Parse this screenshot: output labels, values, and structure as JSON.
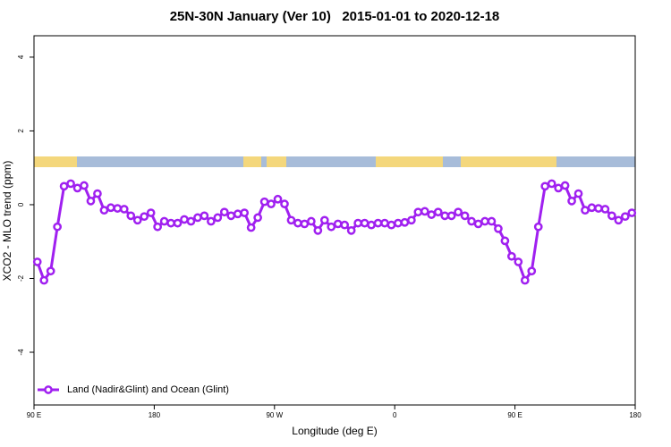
{
  "chart_data": {
    "type": "line",
    "title": "25N-30N January (Ver 10)   2015-01-01 to 2020-12-18",
    "x_label": "Longitude (deg E)",
    "y_label": "XCO2 - MLO trend (ppm)",
    "x": [
      92.5,
      97.5,
      102.5,
      107.5,
      112.5,
      117.5,
      122.5,
      127.5,
      132.5,
      137.5,
      142.5,
      147.5,
      152.5,
      157.5,
      162.5,
      167.5,
      172.5,
      177.5,
      182.5,
      187.5,
      192.5,
      197.5,
      202.5,
      207.5,
      212.5,
      217.5,
      222.5,
      227.5,
      232.5,
      237.5,
      242.5,
      247.5,
      252.5,
      257.5,
      262.5,
      267.5,
      272.5,
      277.5,
      282.5,
      287.5,
      292.5,
      297.5,
      302.5,
      307.5,
      312.5,
      317.5,
      322.5,
      327.5,
      332.5,
      337.5,
      342.5,
      347.5,
      352.5,
      357.5,
      362.5,
      367.5,
      372.5,
      377.5,
      382.5,
      387.5,
      392.5,
      397.5,
      402.5,
      407.5,
      412.5,
      417.5,
      422.5,
      427.5,
      432.5,
      437.5,
      442.5,
      447.5,
      452.5,
      457.5,
      462.5,
      467.5,
      472.5,
      477.5,
      482.5,
      487.5,
      492.5,
      497.5,
      502.5,
      507.5,
      512.5,
      517.5,
      522.5,
      527.5,
      532.5,
      537.5
    ],
    "series": [
      {
        "name": "Land (Nadir&Glint) and Ocean (Glint)",
        "color": "#a020f0",
        "values": [
          -1.55,
          -2.05,
          -1.8,
          -0.6,
          0.5,
          0.57,
          0.45,
          0.52,
          0.1,
          0.3,
          -0.15,
          -0.08,
          -0.1,
          -0.12,
          -0.3,
          -0.42,
          -0.32,
          -0.22,
          -0.6,
          -0.45,
          -0.5,
          -0.5,
          -0.4,
          -0.45,
          -0.35,
          -0.3,
          -0.45,
          -0.35,
          -0.2,
          -0.3,
          -0.25,
          -0.22,
          -0.62,
          -0.35,
          0.08,
          0.02,
          0.15,
          0.02,
          -0.42,
          -0.5,
          -0.52,
          -0.45,
          -0.7,
          -0.42,
          -0.6,
          -0.52,
          -0.55,
          -0.7,
          -0.5,
          -0.5,
          -0.55,
          -0.5,
          -0.5,
          -0.55,
          -0.5,
          -0.48,
          -0.42,
          -0.2,
          -0.18,
          -0.27,
          -0.2,
          -0.3,
          -0.3,
          -0.2,
          -0.3,
          -0.45,
          -0.52,
          -0.45,
          -0.45,
          -0.65,
          -0.98,
          -1.4,
          -1.55,
          -2.05,
          -1.8,
          -0.6,
          0.5,
          0.57,
          0.45,
          0.52,
          0.1,
          0.3,
          -0.15,
          -0.08,
          -0.1,
          -0.12,
          -0.3,
          -0.42,
          -0.32,
          -0.22
        ]
      }
    ],
    "xlim": [
      90,
      540
    ],
    "xticks": [
      {
        "value": 90,
        "label": "90 E"
      },
      180,
      {
        "value": 270,
        "label": "90 W"
      },
      {
        "value": 360,
        "label": "0"
      },
      {
        "value": 450,
        "label": "90 E"
      },
      {
        "value": 540,
        "label": "180"
      }
    ],
    "ylim": [
      -5.43,
      4.58
    ],
    "yticks": [
      -4,
      -2,
      0,
      2,
      4
    ],
    "legend": "bottom-left",
    "grid": false
  }
}
